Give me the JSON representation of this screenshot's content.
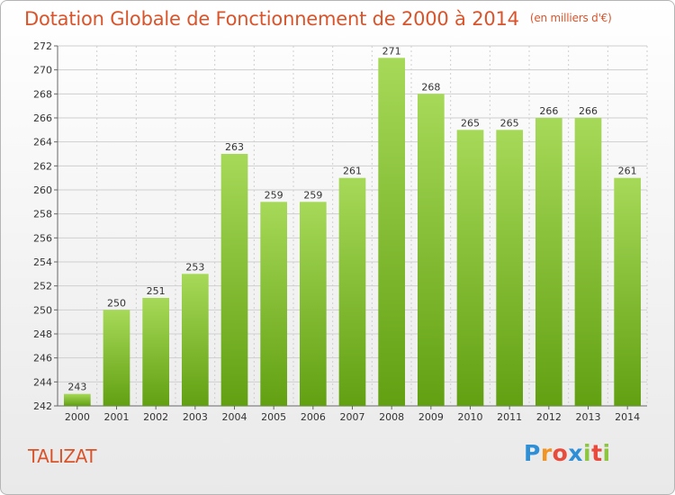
{
  "header": {
    "title": "Dotation Globale de Fonctionnement de 2000 à 2014",
    "unit": "(en milliers d'€)"
  },
  "commune": "TALIZAT",
  "logo": {
    "letters": [
      "P",
      "r",
      "o",
      "x",
      "i",
      "t",
      "i"
    ],
    "colors": [
      "#2f8fd6",
      "#f29423",
      "#e84b3c",
      "#2f8fd6",
      "#8cc63f",
      "#e84b3c",
      "#8cc63f"
    ]
  },
  "colors": {
    "bar_light": "#a6d958",
    "bar_dark": "#62a012",
    "title": "#d9542b",
    "grid": "#cfcfcf"
  },
  "chart_data": {
    "type": "bar",
    "title": "Dotation Globale de Fonctionnement de 2000 à 2014",
    "xlabel": "",
    "ylabel": "",
    "categories": [
      "2000",
      "2001",
      "2002",
      "2003",
      "2004",
      "2005",
      "2006",
      "2007",
      "2008",
      "2009",
      "2010",
      "2011",
      "2012",
      "2013",
      "2014"
    ],
    "values": [
      243,
      250,
      251,
      253,
      263,
      259,
      259,
      261,
      271,
      268,
      265,
      265,
      266,
      266,
      261
    ],
    "ylim": [
      242,
      272
    ],
    "yticks": [
      242,
      244,
      246,
      248,
      250,
      252,
      254,
      256,
      258,
      260,
      262,
      264,
      266,
      268,
      270,
      272
    ],
    "grid": true
  }
}
